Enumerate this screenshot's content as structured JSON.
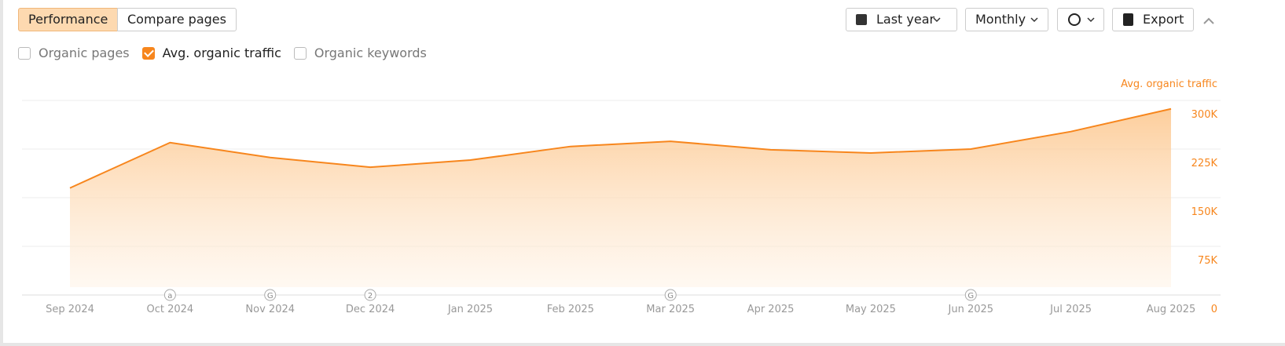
{
  "toolbar": {
    "tabs": [
      "Performance",
      "Compare pages"
    ],
    "range": "Last year",
    "interval": "Monthly",
    "export": "Export"
  },
  "checkboxes": [
    {
      "label": "Organic pages",
      "checked": false
    },
    {
      "label": "Avg. organic traffic",
      "checked": true
    },
    {
      "label": "Organic keywords",
      "checked": false
    }
  ],
  "chart_data": {
    "type": "area",
    "y_axis_label": "Avg. organic traffic",
    "categories": [
      "Sep 2024",
      "Oct 2024",
      "Nov 2024",
      "Dec 2024",
      "Jan 2025",
      "Feb 2025",
      "Mar 2025",
      "Apr 2025",
      "May 2025",
      "Jun 2025",
      "Jul 2025",
      "Aug 2025"
    ],
    "values": [
      165000,
      235000,
      212000,
      197000,
      208000,
      229000,
      237000,
      224000,
      219000,
      225000,
      252000,
      287000
    ],
    "markers": [
      null,
      "a",
      "G",
      "2",
      null,
      null,
      "G",
      null,
      null,
      "G",
      null,
      null
    ],
    "color": "#f7861d",
    "ylim": [
      0,
      300000
    ],
    "yticks": [
      0,
      {
        "value": 75000,
        "label": "75K"
      },
      {
        "value": 150000,
        "label": "150K"
      },
      {
        "value": 225000,
        "label": "225K"
      },
      {
        "value": 300000,
        "label": "300K"
      }
    ],
    "grid": true
  }
}
